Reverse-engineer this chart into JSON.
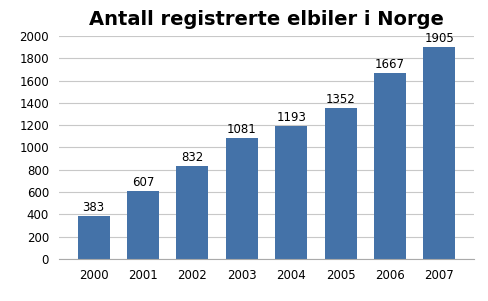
{
  "title": "Antall registrerte elbiler i Norge",
  "years": [
    2000,
    2001,
    2002,
    2003,
    2004,
    2005,
    2006,
    2007
  ],
  "values": [
    383,
    607,
    832,
    1081,
    1193,
    1352,
    1667,
    1905
  ],
  "bar_color": "#4472a8",
  "ylim": [
    0,
    2000
  ],
  "yticks": [
    0,
    200,
    400,
    600,
    800,
    1000,
    1200,
    1400,
    1600,
    1800,
    2000
  ],
  "title_fontsize": 14,
  "tick_fontsize": 8.5,
  "label_fontsize": 8.5,
  "background_color": "#ffffff",
  "grid_color": "#c8c8c8"
}
